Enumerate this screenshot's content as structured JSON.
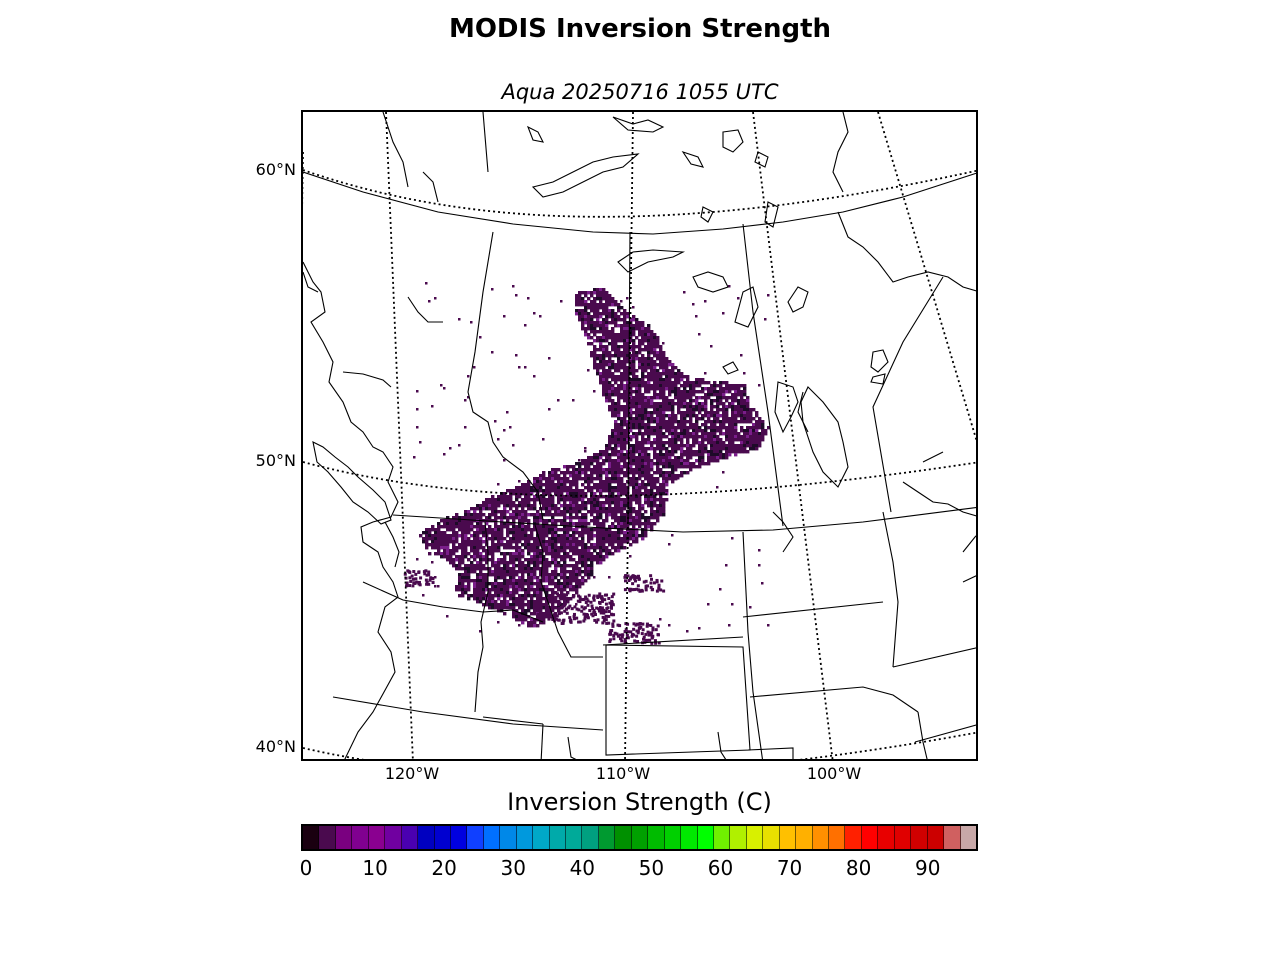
{
  "title": "MODIS Inversion Strength",
  "subtitle": "Aqua 20250716 1055 UTC",
  "map": {
    "lat_labels": [
      {
        "text": "60°N",
        "value": 60
      },
      {
        "text": "50°N",
        "value": 50
      },
      {
        "text": "40°N",
        "value": 40
      }
    ],
    "lon_labels": [
      {
        "text": "120°W",
        "value": -120
      },
      {
        "text": "110°W",
        "value": -110
      },
      {
        "text": "100°W",
        "value": -100
      }
    ],
    "data_color": "#4a0a4e",
    "data_color_dark": "#1e0a28",
    "data_color_light": "#7a1e8a"
  },
  "colorbar": {
    "label": "Inversion Strength (C)",
    "min": 0,
    "max": 98,
    "ticks": [
      "0",
      "10",
      "20",
      "30",
      "40",
      "50",
      "60",
      "70",
      "80",
      "90"
    ],
    "tick_values": [
      0,
      10,
      20,
      30,
      40,
      50,
      60,
      70,
      80,
      90
    ],
    "colors": [
      "#1a0010",
      "#4a0a4e",
      "#7a0080",
      "#800090",
      "#8a0090",
      "#7000a0",
      "#4a00b0",
      "#0000c0",
      "#0000d0",
      "#0000e0",
      "#1040ff",
      "#0070ff",
      "#0088e8",
      "#0099dd",
      "#00a8c8",
      "#00aaaa",
      "#00aa99",
      "#00a080",
      "#009a30",
      "#009000",
      "#00a000",
      "#00bb00",
      "#00d000",
      "#00e800",
      "#00ff00",
      "#70f000",
      "#b0f000",
      "#d8f000",
      "#e8e000",
      "#ffc000",
      "#ffb000",
      "#ff9000",
      "#ff7000",
      "#ff2000",
      "#ff0000",
      "#e80000",
      "#e00000",
      "#d00000",
      "#cc0000",
      "#d06060",
      "#c8a8a8"
    ]
  }
}
